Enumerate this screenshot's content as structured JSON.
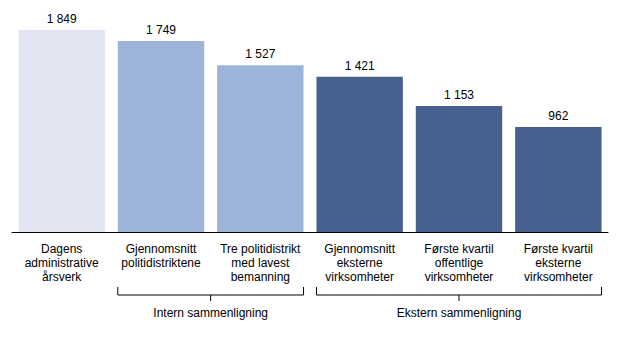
{
  "chart_data": {
    "type": "bar",
    "categories": [
      "Dagens\nadministrative\nårsverk",
      "Gjennomsnitt\npolitidistriktene",
      "Tre politidistrikt\nmed lavest\nbemanning",
      "Gjennomsnitt\neksterne\nvirksomheter",
      "Første kvartil\noffentlige\nvirksomheter",
      "Første kvartil\neksterne\nvirksomheter"
    ],
    "values": [
      1849,
      1749,
      1527,
      1421,
      1153,
      962
    ],
    "value_labels": [
      "1 849",
      "1 749",
      "1 527",
      "1 421",
      "1 153",
      "962"
    ],
    "colors": [
      "#e1e5f2",
      "#9db3d9",
      "#9db3d9",
      "#47618f",
      "#47618f",
      "#47618f"
    ],
    "ylim": [
      0,
      1849
    ],
    "data_labels": true,
    "tick_labels": "x",
    "grid": false,
    "annotations": [
      {
        "text": "Intern sammenligning",
        "categories": [
          "Gjennomsnitt\npolitidistriktene",
          "Tre politidistrikt\nmed lavest\nbemanning"
        ]
      },
      {
        "text": "Ekstern sammenligning",
        "categories": [
          "Gjennomsnitt\neksterne\nvirksomheter",
          "Første kvartil\noffentlige\nvirksomheter",
          "Første kvartil\neksterne\nvirksomheter"
        ]
      }
    ]
  }
}
